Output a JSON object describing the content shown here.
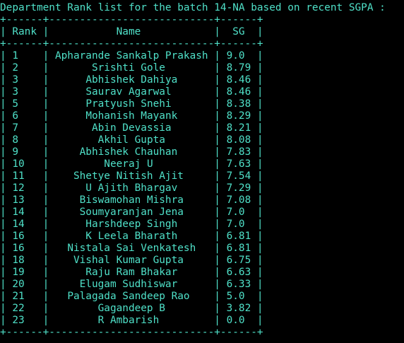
{
  "title": "Department Rank list for the batch 14-NA based on recent SGPA :",
  "columns": [
    "Rank",
    "Name",
    "SG"
  ],
  "rows": [
    {
      "rank": "1",
      "name": "Apharande Sankalp Prakash",
      "sg": "9.0"
    },
    {
      "rank": "2",
      "name": "Srishti Gole",
      "sg": "8.79"
    },
    {
      "rank": "3",
      "name": "Abhishek Dahiya",
      "sg": "8.46"
    },
    {
      "rank": "3",
      "name": "Saurav Agarwal",
      "sg": "8.46"
    },
    {
      "rank": "5",
      "name": "Pratyush Snehi",
      "sg": "8.38"
    },
    {
      "rank": "6",
      "name": "Mohanish Mayank",
      "sg": "8.29"
    },
    {
      "rank": "7",
      "name": "Abin Devassia",
      "sg": "8.21"
    },
    {
      "rank": "8",
      "name": "Akhil Gupta",
      "sg": "8.08"
    },
    {
      "rank": "9",
      "name": "Abhishek Chauhan",
      "sg": "7.83"
    },
    {
      "rank": "10",
      "name": "Neeraj U",
      "sg": "7.63"
    },
    {
      "rank": "11",
      "name": "Shetye Nitish Ajit",
      "sg": "7.54"
    },
    {
      "rank": "12",
      "name": "U Ajith Bhargav",
      "sg": "7.29"
    },
    {
      "rank": "13",
      "name": "Biswamohan Mishra",
      "sg": "7.08"
    },
    {
      "rank": "14",
      "name": "Soumyaranjan Jena",
      "sg": "7.0"
    },
    {
      "rank": "14",
      "name": "Harshdeep Singh",
      "sg": "7.0"
    },
    {
      "rank": "16",
      "name": "K Leela Bharath",
      "sg": "6.81"
    },
    {
      "rank": "16",
      "name": "Nistala Sai Venkatesh",
      "sg": "6.81"
    },
    {
      "rank": "18",
      "name": "Vishal Kumar Gupta",
      "sg": "6.75"
    },
    {
      "rank": "19",
      "name": "Raju Ram Bhakar",
      "sg": "6.63"
    },
    {
      "rank": "20",
      "name": "Elugam Sudhiswar",
      "sg": "6.33"
    },
    {
      "rank": "21",
      "name": "Palagada Sandeep Rao",
      "sg": "5.0"
    },
    {
      "rank": "22",
      "name": "Gagandeep B",
      "sg": "3.82"
    },
    {
      "rank": "23",
      "name": "R Ambarish",
      "sg": "0.0"
    }
  ],
  "colors": {
    "background": "#000000",
    "text": "#4FE0C8"
  }
}
